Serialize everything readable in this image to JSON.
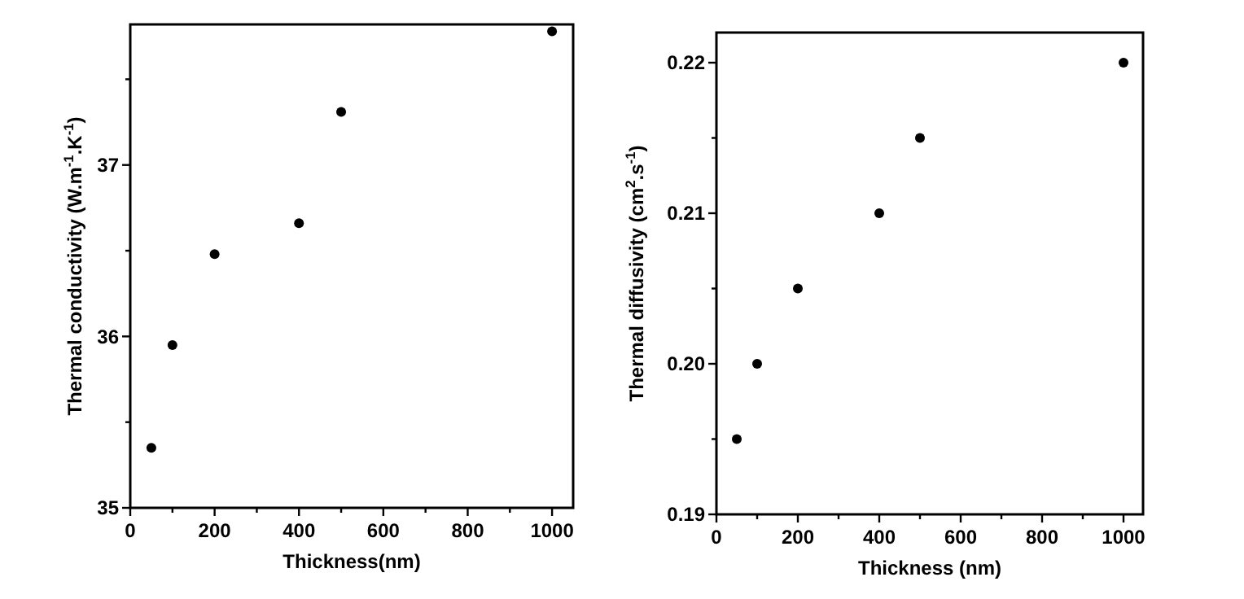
{
  "chart_data": [
    {
      "type": "scatter",
      "xlabel": "Thickness(nm)",
      "ylabel": "Thermal conductivity (W.m$^{-1}$.K$^{-1}$)",
      "x": [
        50,
        100,
        200,
        400,
        500,
        1000
      ],
      "series": [
        {
          "color": "#000000",
          "values": [
            35.35,
            35.95,
            36.48,
            36.66,
            37.31,
            37.78
          ]
        }
      ],
      "xlim": [
        0,
        1050
      ],
      "ylim": [
        35,
        37.82
      ],
      "xticks": [
        0,
        {
          "value": 100,
          "label": null
        },
        200,
        {
          "value": 300,
          "label": null
        },
        400,
        {
          "value": 500,
          "label": null
        },
        600,
        {
          "value": 700,
          "label": null
        },
        800,
        {
          "value": 900,
          "label": null
        },
        1000
      ],
      "yticks": [
        35,
        {
          "value": 35.5,
          "label": null
        },
        36,
        {
          "value": 36.5,
          "label": null
        },
        37,
        {
          "value": 37.5,
          "label": null
        }
      ],
      "marker": "circle"
    },
    {
      "type": "scatter",
      "xlabel": "Thickness (nm)",
      "ylabel": "Thermal diffusivity (cm$^{2}$.s$^{-1}$)",
      "x": [
        50,
        100,
        200,
        400,
        500,
        1000
      ],
      "series": [
        {
          "color": "#000000",
          "values": [
            0.195,
            0.2,
            0.205,
            0.21,
            0.215,
            0.22
          ]
        }
      ],
      "xlim": [
        0,
        1048
      ],
      "ylim": [
        0.19,
        0.222
      ],
      "xticks": [
        0,
        {
          "value": 100,
          "label": null
        },
        200,
        {
          "value": 300,
          "label": null
        },
        400,
        {
          "value": 500,
          "label": null
        },
        600,
        {
          "value": 700,
          "label": null
        },
        800,
        {
          "value": 900,
          "label": null
        },
        1000
      ],
      "yticks": [
        {
          "value": 0.19,
          "label": "0.19"
        },
        {
          "value": 0.195,
          "label": null
        },
        {
          "value": 0.2,
          "label": "0.20"
        },
        {
          "value": 0.205,
          "label": null
        },
        {
          "value": 0.21,
          "label": "0.21"
        },
        {
          "value": 0.215,
          "label": null
        },
        {
          "value": 0.22,
          "label": "0.22"
        }
      ],
      "marker": "circle"
    }
  ]
}
